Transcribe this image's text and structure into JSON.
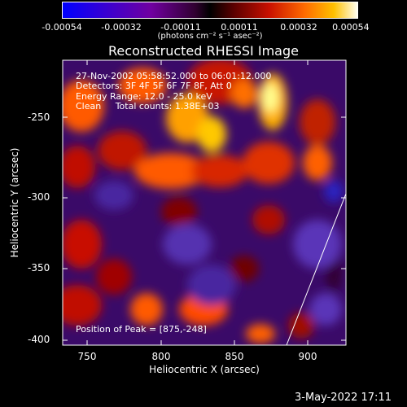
{
  "colorbar": {
    "ticks": [
      "-0.00054",
      "-0.00032",
      "-0.00011",
      "0.00011",
      "0.00032",
      "0.00054"
    ],
    "unit_label": "(photons cm⁻² s⁻¹ asec⁻²)",
    "range": [
      -0.00054,
      0.00054
    ]
  },
  "chart_data": {
    "type": "heatmap",
    "title": "Reconstructed RHESSI Image",
    "xlabel": "Heliocentric X (arcsec)",
    "ylabel": "Heliocentric Y (arcsec)",
    "xlim": [
      733,
      925
    ],
    "ylim": [
      -402,
      -207
    ],
    "x_ticks": [
      "750",
      "800",
      "850",
      "900"
    ],
    "y_ticks": [
      "-250",
      "-300",
      "-350",
      "-400"
    ],
    "peak": [
      875,
      -248
    ],
    "annotations": {
      "line1": "27-Nov-2002 05:58:52.000 to 06:01:12.000",
      "line2": "Detectors: 3F 4F 5F 6F 7F 8F, Att 0",
      "line3": "Energy Range: 12.0 - 25.0 keV",
      "line4": "Clean     Total counts: 1.38E+03",
      "peak_text": "Position of Peak = [875,-248]"
    },
    "grid": false
  },
  "footer": {
    "timestamp": "3-May-2022 17:11"
  }
}
